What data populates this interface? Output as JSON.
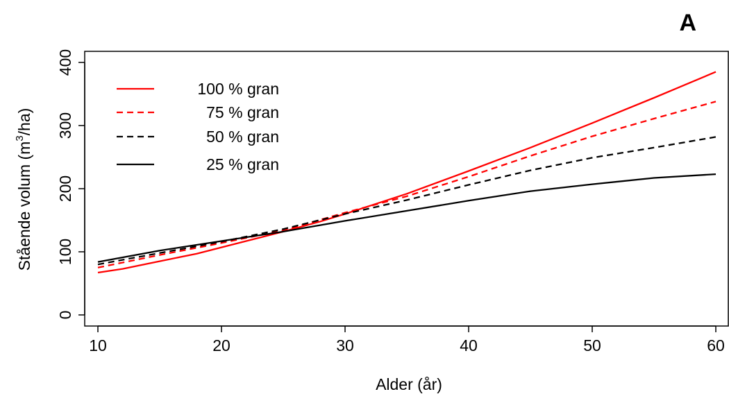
{
  "panel_label": "A",
  "chart_data": {
    "type": "line",
    "xlabel": "Alder (år)",
    "ylabel_pre": "Stående volum (m",
    "ylabel_sup": "3",
    "ylabel_post": "/ha)",
    "xlim": [
      10,
      60
    ],
    "ylim": [
      0,
      400
    ],
    "xticks": [
      "10",
      "20",
      "30",
      "40",
      "50",
      "60"
    ],
    "yticks": [
      "0",
      "100",
      "200",
      "300",
      "400"
    ],
    "grid": false,
    "legend_position": "top-left",
    "series": [
      {
        "name": "100 % gran",
        "color": "#ff0000",
        "dash": "solid",
        "x": [
          10,
          12,
          15,
          18,
          20,
          22,
          25,
          28,
          30,
          35,
          40,
          45,
          50,
          55,
          60
        ],
        "y": [
          67,
          73,
          85,
          97,
          107,
          117,
          132,
          148,
          160,
          192,
          228,
          265,
          304,
          344,
          385
        ]
      },
      {
        "name": "75 % gran",
        "color": "#ff0000",
        "dash": "dashed",
        "x": [
          10,
          15,
          20,
          25,
          30,
          35,
          40,
          45,
          50,
          55,
          60
        ],
        "y": [
          75,
          95,
          114,
          134,
          162,
          188,
          219,
          252,
          283,
          311,
          338
        ]
      },
      {
        "name": "50 % gran",
        "color": "#000000",
        "dash": "dashed",
        "x": [
          10,
          15,
          20,
          25,
          30,
          35,
          40,
          45,
          50,
          55,
          60
        ],
        "y": [
          80,
          98,
          116,
          136,
          160,
          182,
          206,
          229,
          249,
          265,
          282
        ]
      },
      {
        "name": "25 % gran",
        "color": "#000000",
        "dash": "solid",
        "x": [
          10,
          15,
          20,
          25,
          30,
          35,
          40,
          45,
          50,
          55,
          60
        ],
        "y": [
          84,
          102,
          117,
          132,
          149,
          165,
          181,
          196,
          207,
          217,
          223
        ]
      }
    ]
  }
}
